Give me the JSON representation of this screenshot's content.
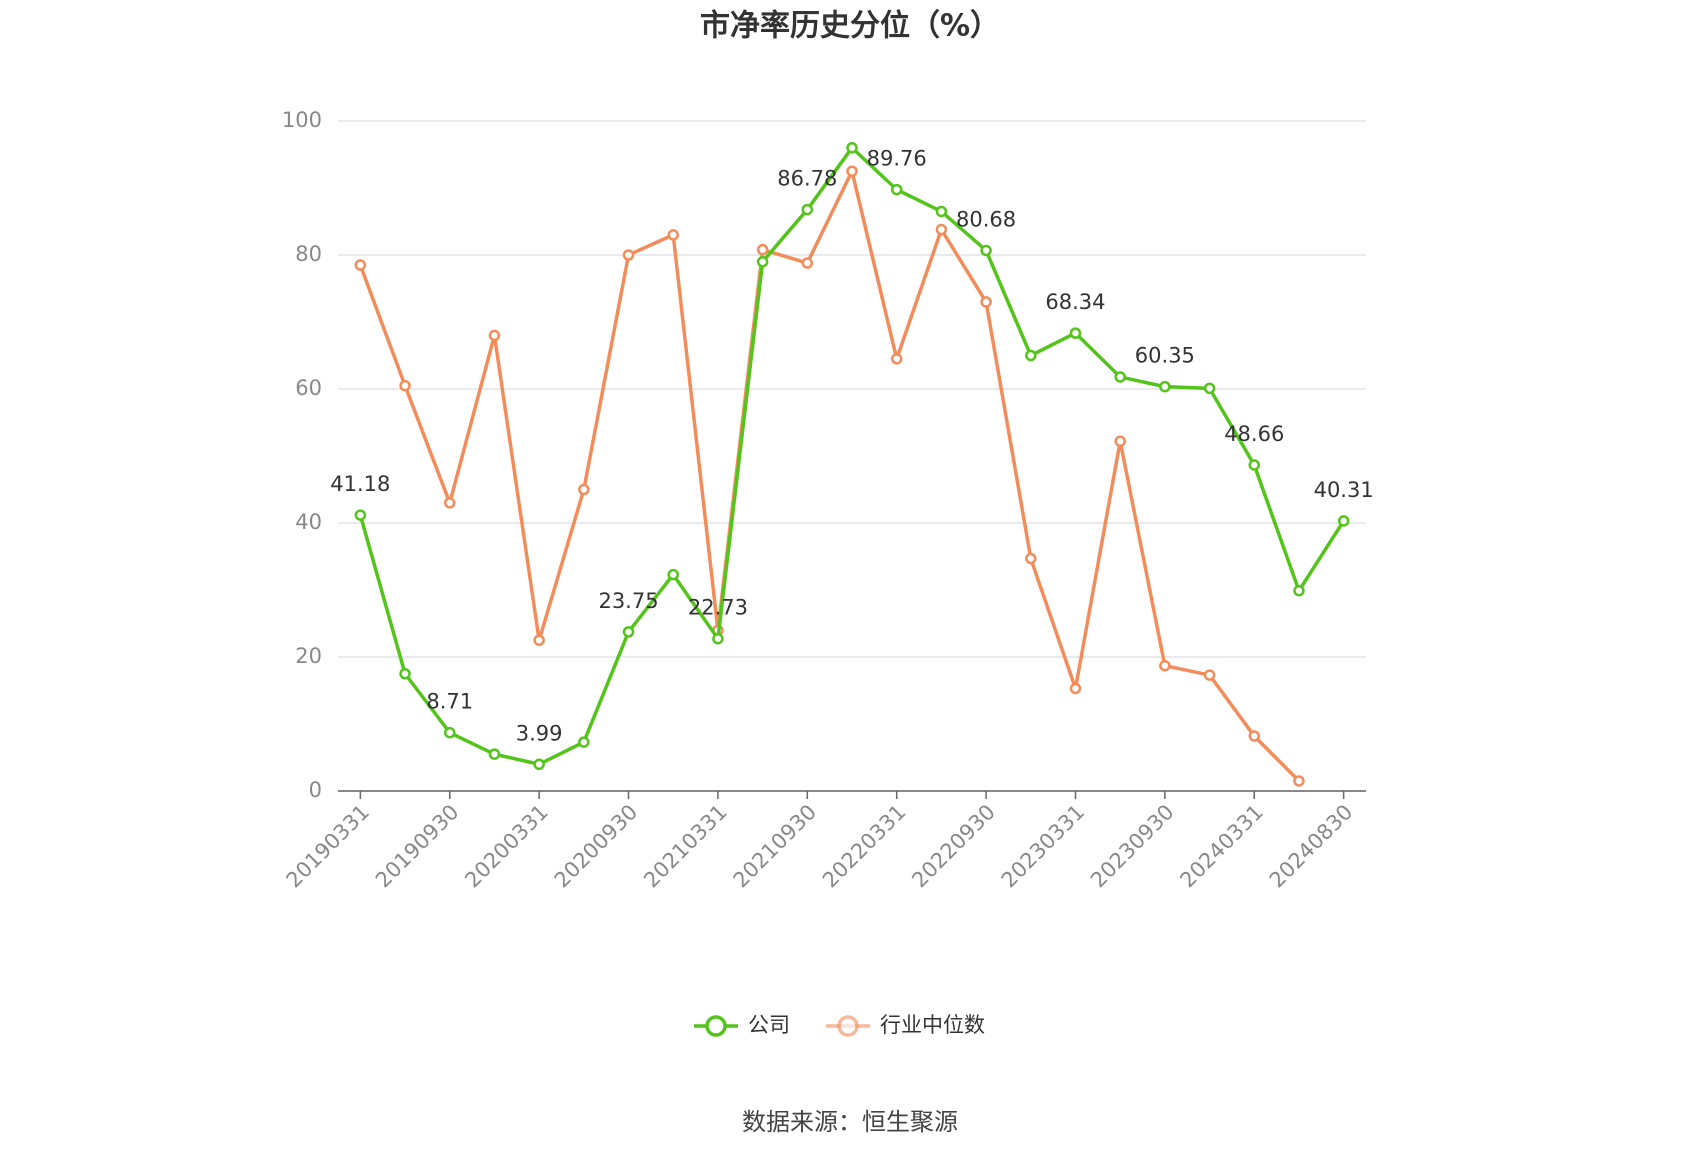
{
  "chart_data": {
    "type": "line",
    "title": "市净率历史分位（%）",
    "categories": [
      "20190331",
      null,
      "20190930",
      null,
      "20200331",
      null,
      "20200930",
      null,
      "20210331",
      null,
      "20210930",
      null,
      "20220331",
      null,
      "20220930",
      null,
      "20230331",
      null,
      "20230930",
      null,
      "20240331",
      null,
      "20240830"
    ],
    "series": [
      {
        "name": "公司",
        "color": "#52c41a",
        "values": [
          41.18,
          17.5,
          8.71,
          5.5,
          3.99,
          7.3,
          23.75,
          32.3,
          22.73,
          79.0,
          86.78,
          96.0,
          89.76,
          86.5,
          80.68,
          65.0,
          68.34,
          61.8,
          60.35,
          60.1,
          48.66,
          29.9,
          40.31
        ],
        "value_labels": [
          "41.18",
          null,
          "8.71",
          null,
          "3.99",
          null,
          "23.75",
          null,
          "22.73",
          null,
          "86.78",
          null,
          "89.76",
          null,
          "80.68",
          null,
          "68.34",
          null,
          "60.35",
          null,
          "48.66",
          null,
          "40.31"
        ]
      },
      {
        "name": "行业中位数",
        "color": "#f28c5a",
        "values": [
          78.5,
          60.5,
          43.0,
          68.0,
          22.5,
          45.0,
          80.0,
          83.0,
          24.0,
          80.8,
          78.8,
          92.5,
          64.5,
          83.8,
          73.0,
          34.7,
          15.3,
          52.2,
          18.7,
          17.3,
          8.2,
          1.5,
          null
        ]
      }
    ],
    "ylim": [
      0,
      100
    ],
    "yticks": [
      0,
      20,
      40,
      60,
      80,
      100
    ],
    "grid": true,
    "legend": "bottom",
    "source": "数据来源：恒生聚源"
  }
}
